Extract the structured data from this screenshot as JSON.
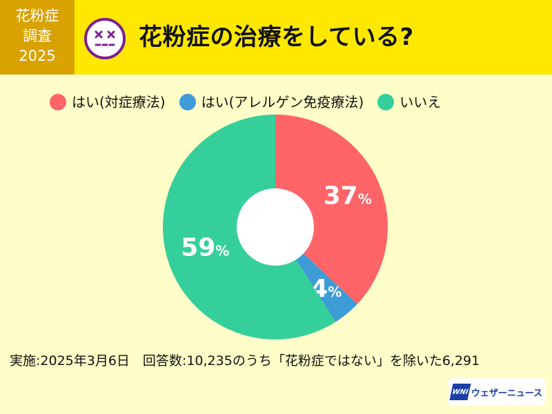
{
  "badge": {
    "line1": "花粉症",
    "line2": "調査",
    "line3": "2025"
  },
  "title": "花粉症の治療をしている?",
  "icon": "dizzy-face-icon",
  "colors": {
    "header": "#ffe800",
    "badge": "#d9a200",
    "background": "#fffdc8",
    "face_outline": "#7d1e93"
  },
  "legend": [
    {
      "label": "はい(対症療法)",
      "color": "#ff6468"
    },
    {
      "label": "はい(アレルゲン免疫療法)",
      "color": "#3d9bd6"
    },
    {
      "label": "いいえ",
      "color": "#35cf9c"
    }
  ],
  "chart_data": {
    "type": "pie",
    "donut": true,
    "categories": [
      "はい(対症療法)",
      "はい(アレルゲン免疫療法)",
      "いいえ"
    ],
    "values": [
      37,
      4,
      59
    ],
    "unit": "%",
    "colors": [
      "#ff6468",
      "#3d9bd6",
      "#35cf9c"
    ],
    "legend_position": "top"
  },
  "footer": "実施:2025年3月6日　回答数:10,235のうち「花粉症ではない」を除いた6,291",
  "logo": {
    "mark": "WNI",
    "name": "ウェザーニュース"
  }
}
